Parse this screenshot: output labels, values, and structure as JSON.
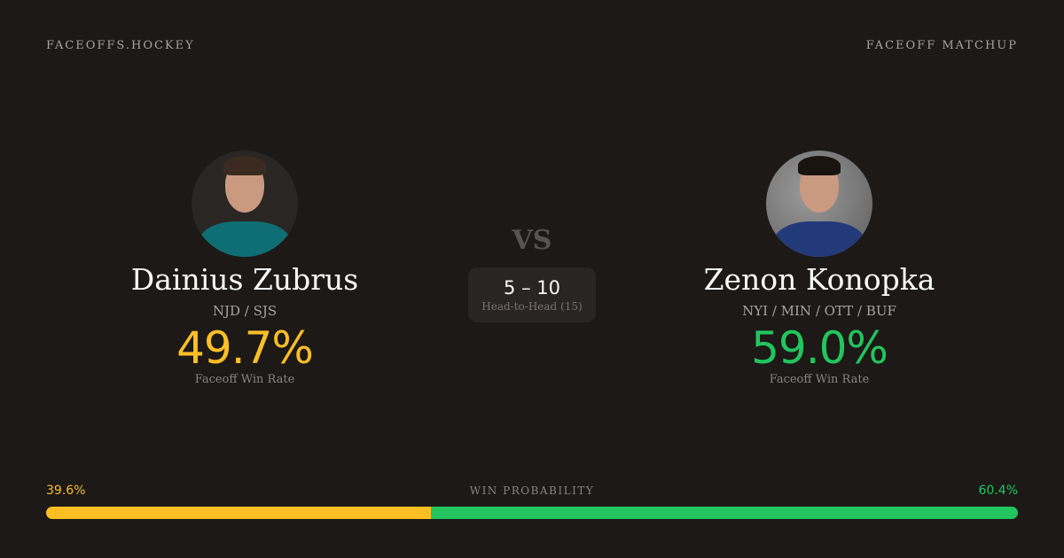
{
  "header": {
    "brand": "FACEOFFS.HOCKEY",
    "page_kind": "FACEOFF MATCHUP"
  },
  "players": [
    {
      "name": "Dainius Zubrus",
      "teams": "NJD / SJS",
      "win_rate": "49.7%",
      "win_rate_label": "Faceoff Win Rate"
    },
    {
      "name": "Zenon Konopka",
      "teams": "NYI / MIN / OTT / BUF",
      "win_rate": "59.0%",
      "win_rate_label": "Faceoff Win Rate"
    }
  ],
  "vs_label": "VS",
  "head_to_head": {
    "score": "5 – 10",
    "label": "Head-to-Head (15)"
  },
  "win_probability": {
    "label": "WIN PROBABILITY",
    "left": "39.6%",
    "right": "60.4%",
    "left_value": 39.6,
    "right_value": 60.4
  },
  "colors": {
    "background": "#1c1917",
    "player1": "#fbbf24",
    "player2": "#22c55e"
  }
}
